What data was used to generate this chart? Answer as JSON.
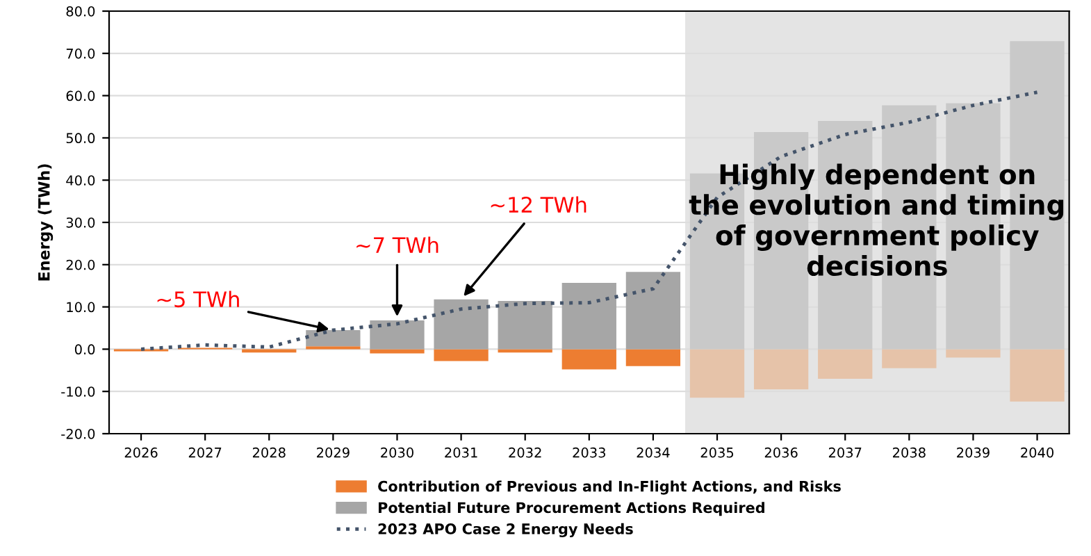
{
  "chart_data": {
    "type": "bar",
    "ylabel": "Energy (TWh)",
    "stacked": true,
    "categories": [
      "2026",
      "2027",
      "2028",
      "2029",
      "2030",
      "2031",
      "2032",
      "2033",
      "2034",
      "2035",
      "2036",
      "2037",
      "2038",
      "2039",
      "2040"
    ],
    "series": [
      {
        "name": "Contribution of Previous and In-Flight Actions, and Risks",
        "color": "#ed7d31",
        "colors": [
          "#ed7d31",
          "#ed7d31",
          "#ed7d31",
          "#ed7d31",
          "#ed7d31",
          "#ed7d31",
          "#ed7d31",
          "#ed7d31",
          "#ed7d31",
          "#e6c3a9",
          "#e6c3a9",
          "#e6c3a9",
          "#e6c3a9",
          "#e6c3a9",
          "#e6c3a9"
        ],
        "values": [
          -0.5,
          0.3,
          -0.8,
          0.7,
          -1.0,
          -2.8,
          -0.8,
          -4.8,
          -4.0,
          -11.5,
          -9.5,
          -7.0,
          -4.5,
          -2.0,
          -12.4
        ]
      },
      {
        "name": "Potential Future Procurement Actions Required",
        "color": "#a6a6a6",
        "colors": [
          "#a6a6a6",
          "#a6a6a6",
          "#a6a6a6",
          "#a6a6a6",
          "#a6a6a6",
          "#a6a6a6",
          "#a6a6a6",
          "#a6a6a6",
          "#a6a6a6",
          "#c9c9c9",
          "#c9c9c9",
          "#c9c9c9",
          "#c9c9c9",
          "#c9c9c9",
          "#c9c9c9"
        ],
        "values": [
          0,
          null,
          0,
          3.8,
          6.8,
          11.8,
          11.4,
          15.7,
          18.3,
          41.6,
          51.4,
          54.0,
          57.7,
          58.2,
          72.9
        ]
      },
      {
        "name": "2023 APO Case 2 Energy Needs",
        "type": "line",
        "color": "#44546a",
        "line_style": "dotted",
        "values": [
          0,
          1.0,
          0.5,
          4.5,
          6.0,
          9.5,
          10.8,
          11.0,
          14.3,
          35.9,
          45.6,
          50.8,
          53.7,
          57.7,
          60.8
        ]
      }
    ],
    "ylim": [
      -20,
      80
    ],
    "yticks": [
      {
        "value": -20,
        "label": "-20.0"
      },
      {
        "value": -10,
        "label": "-10.0"
      },
      {
        "value": 0,
        "label": "0.0"
      },
      {
        "value": 10,
        "label": "10.0"
      },
      {
        "value": 20,
        "label": "20.0"
      },
      {
        "value": 30,
        "label": "30.0"
      },
      {
        "value": 40,
        "label": "40.0"
      },
      {
        "value": 50,
        "label": "50.0"
      },
      {
        "value": 60,
        "label": "60.0"
      },
      {
        "value": 70,
        "label": "70.0"
      },
      {
        "value": 80,
        "label": "80.0"
      }
    ],
    "grid": "y",
    "legend": "bottom",
    "bands": [
      {
        "axis": "x",
        "from": "2035",
        "to": "2040",
        "color": "#e4e4e4",
        "label": "Highly dependent on\nthe evolution and timing\nof government policy\ndecisions"
      }
    ],
    "annotations": [
      {
        "text": "~5 TWh",
        "x": "2029",
        "y": 4.5
      },
      {
        "text": "~7 TWh",
        "x": "2030",
        "y": 6.8
      },
      {
        "text": "~12 TWh",
        "x": "2031",
        "y": 11.8
      }
    ]
  }
}
